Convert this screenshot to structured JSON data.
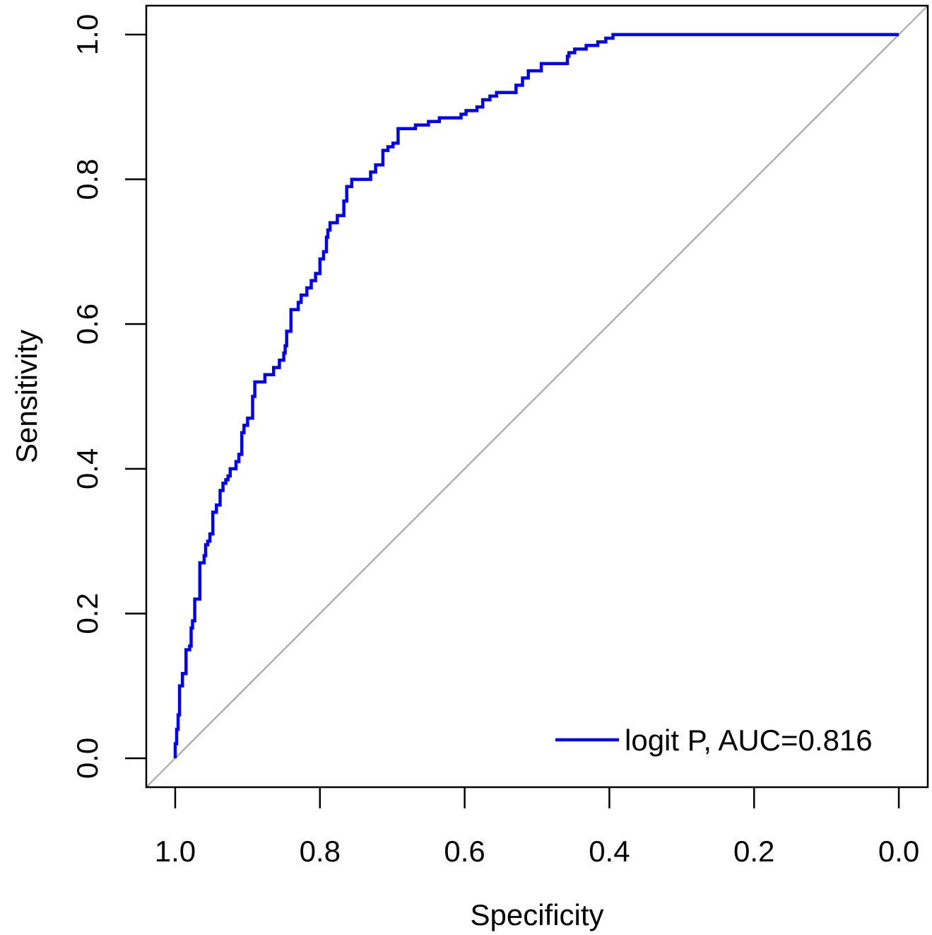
{
  "chart_data": {
    "type": "line",
    "xlabel": "Specificity",
    "ylabel": "Sensitivity",
    "xlim": [
      1.04,
      -0.04
    ],
    "ylim": [
      -0.04,
      1.04
    ],
    "x_reversed": true,
    "x_ticks": [
      {
        "value": 1.0,
        "label": "1.0"
      },
      {
        "value": 0.8,
        "label": "0.8"
      },
      {
        "value": 0.6,
        "label": "0.6"
      },
      {
        "value": 0.4,
        "label": "0.4"
      },
      {
        "value": 0.2,
        "label": "0.2"
      },
      {
        "value": 0.0,
        "label": "0.0"
      }
    ],
    "y_ticks": [
      {
        "value": 0.0,
        "label": "0.0"
      },
      {
        "value": 0.2,
        "label": "0.2"
      },
      {
        "value": 0.4,
        "label": "0.4"
      },
      {
        "value": 0.6,
        "label": "0.6"
      },
      {
        "value": 0.8,
        "label": "0.8"
      },
      {
        "value": 1.0,
        "label": "1.0"
      }
    ],
    "grid": false,
    "legend": {
      "position": "bottom-right",
      "entries": [
        "logit P, AUC=0.816"
      ]
    },
    "reference_line": {
      "from": [
        1.0,
        0.0
      ],
      "to": [
        0.0,
        1.0
      ],
      "color": "#a6a6a6"
    },
    "series": [
      {
        "name": "logit P, AUC=0.816",
        "color": "#0000ff",
        "x": [
          1.0,
          1.0,
          0.998,
          0.998,
          0.996,
          0.996,
          0.994,
          0.994,
          0.99,
          0.99,
          0.985,
          0.985,
          0.98,
          0.98,
          0.978,
          0.978,
          0.976,
          0.976,
          0.973,
          0.973,
          0.966,
          0.966,
          0.96,
          0.96,
          0.958,
          0.958,
          0.955,
          0.955,
          0.952,
          0.952,
          0.948,
          0.948,
          0.943,
          0.943,
          0.938,
          0.938,
          0.934,
          0.934,
          0.93,
          0.93,
          0.927,
          0.927,
          0.924,
          0.924,
          0.916,
          0.916,
          0.912,
          0.912,
          0.908,
          0.908,
          0.905,
          0.905,
          0.9,
          0.9,
          0.893,
          0.893,
          0.89,
          0.89,
          0.876,
          0.876,
          0.864,
          0.864,
          0.856,
          0.856,
          0.85,
          0.85,
          0.848,
          0.848,
          0.846,
          0.846,
          0.84,
          0.84,
          0.83,
          0.83,
          0.826,
          0.826,
          0.818,
          0.818,
          0.812,
          0.812,
          0.806,
          0.806,
          0.8,
          0.8,
          0.795,
          0.795,
          0.791,
          0.791,
          0.789,
          0.789,
          0.786,
          0.786,
          0.776,
          0.776,
          0.767,
          0.767,
          0.763,
          0.763,
          0.756,
          0.756,
          0.73,
          0.73,
          0.723,
          0.723,
          0.713,
          0.713,
          0.706,
          0.706,
          0.699,
          0.699,
          0.692,
          0.692,
          0.668,
          0.668,
          0.65,
          0.65,
          0.635,
          0.635,
          0.605,
          0.605,
          0.598,
          0.598,
          0.583,
          0.583,
          0.575,
          0.575,
          0.565,
          0.565,
          0.556,
          0.556,
          0.529,
          0.529,
          0.52,
          0.52,
          0.512,
          0.512,
          0.494,
          0.494,
          0.458,
          0.458,
          0.456,
          0.456,
          0.448,
          0.448,
          0.432,
          0.432,
          0.416,
          0.416,
          0.405,
          0.405,
          0.395,
          0.395,
          0.37,
          0.37,
          0.335,
          0.335,
          0.322,
          0.322,
          0.31,
          0.31,
          0.3,
          0.3,
          0.29,
          0.29,
          0.286,
          0.286,
          0.282,
          0.282,
          0.278,
          0.278,
          0.272,
          0.272,
          0.268,
          0.268,
          0.265,
          0.265,
          0.0
        ],
        "y": [
          0.0,
          0.02,
          0.02,
          0.04,
          0.04,
          0.06,
          0.06,
          0.1,
          0.1,
          0.117,
          0.117,
          0.15,
          0.15,
          0.155,
          0.155,
          0.18,
          0.18,
          0.19,
          0.19,
          0.22,
          0.22,
          0.27,
          0.27,
          0.28,
          0.28,
          0.295,
          0.295,
          0.3,
          0.3,
          0.31,
          0.31,
          0.34,
          0.34,
          0.35,
          0.35,
          0.37,
          0.37,
          0.38,
          0.38,
          0.385,
          0.385,
          0.39,
          0.39,
          0.4,
          0.4,
          0.41,
          0.41,
          0.42,
          0.42,
          0.45,
          0.45,
          0.46,
          0.46,
          0.47,
          0.47,
          0.5,
          0.5,
          0.52,
          0.52,
          0.53,
          0.53,
          0.54,
          0.54,
          0.55,
          0.55,
          0.56,
          0.56,
          0.57,
          0.57,
          0.59,
          0.59,
          0.62,
          0.62,
          0.63,
          0.63,
          0.64,
          0.64,
          0.65,
          0.65,
          0.66,
          0.66,
          0.67,
          0.67,
          0.69,
          0.69,
          0.7,
          0.7,
          0.72,
          0.72,
          0.73,
          0.73,
          0.74,
          0.74,
          0.75,
          0.75,
          0.77,
          0.77,
          0.79,
          0.79,
          0.8,
          0.8,
          0.81,
          0.81,
          0.82,
          0.82,
          0.84,
          0.84,
          0.845,
          0.845,
          0.85,
          0.85,
          0.87,
          0.87,
          0.875,
          0.875,
          0.88,
          0.88,
          0.885,
          0.885,
          0.89,
          0.89,
          0.895,
          0.895,
          0.9,
          0.9,
          0.91,
          0.91,
          0.915,
          0.915,
          0.92,
          0.92,
          0.93,
          0.93,
          0.94,
          0.94,
          0.95,
          0.95,
          0.96,
          0.96,
          0.97,
          0.97,
          0.975,
          0.975,
          0.98,
          0.98,
          0.985,
          0.985,
          0.99,
          0.99,
          0.995,
          0.995,
          1.0,
          1.0,
          1.0,
          1.0,
          1.0,
          1.0,
          1.0,
          1.0,
          1.0,
          1.0,
          1.0,
          1.0,
          1.0,
          1.0,
          1.0,
          1.0,
          1.0,
          1.0,
          1.0,
          1.0,
          1.0,
          1.0,
          1.0,
          1.0,
          1.0,
          1.0
        ]
      }
    ]
  }
}
